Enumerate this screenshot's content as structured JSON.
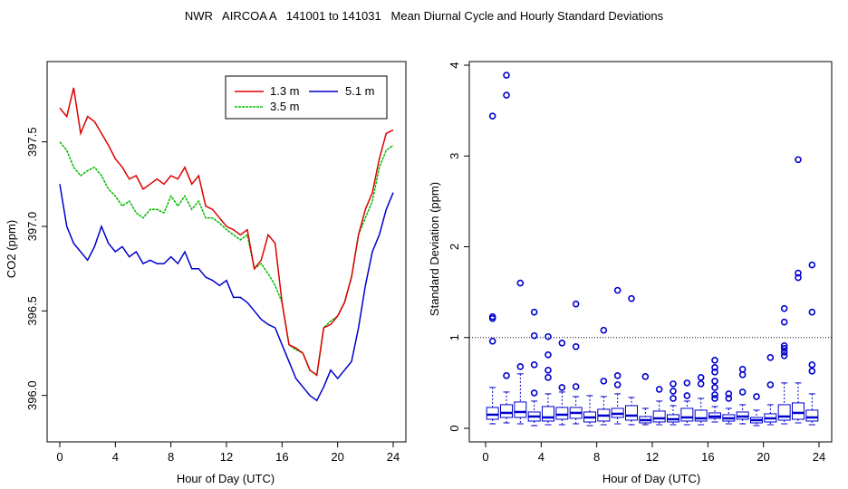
{
  "page_title": "NWR   AIRCOA A   141001 to 141031   Mean Diurnal Cycle and Hourly Standard Deviations",
  "colors": {
    "red": "#dd0000",
    "green": "#00bb00",
    "blue": "#0000cc",
    "axis": "#000000"
  },
  "chart_data": [
    {
      "type": "line",
      "title": "",
      "xlabel": "Hour of Day (UTC)",
      "ylabel": "CO2 (ppm)",
      "xlim": [
        0,
        24
      ],
      "ylim": [
        395.8,
        397.9
      ],
      "xticks": [
        0,
        4,
        8,
        12,
        16,
        20,
        24
      ],
      "xtick_labels": [
        "0",
        "4",
        "8",
        "12",
        "16",
        "20",
        "24"
      ],
      "yticks": [
        396.0,
        396.5,
        397.0,
        397.5
      ],
      "ytick_labels": [
        "396.0",
        "396.5",
        "397.0",
        "397.5"
      ],
      "legend_position": "top-right",
      "legend": [
        {
          "label": "1.3 m",
          "color": "#dd0000"
        },
        {
          "label": "5.1 m",
          "color": "#0000cc"
        },
        {
          "label": "3.5 m",
          "color": "#00bb00"
        }
      ],
      "x": [
        0,
        0.5,
        1,
        1.5,
        2,
        2.5,
        3,
        3.5,
        4,
        4.5,
        5,
        5.5,
        6,
        6.5,
        7,
        7.5,
        8,
        8.5,
        9,
        9.5,
        10,
        10.5,
        11,
        11.5,
        12,
        12.5,
        13,
        13.5,
        14,
        14.5,
        15,
        15.5,
        16,
        16.5,
        17,
        17.5,
        18,
        18.5,
        19,
        19.5,
        20,
        20.5,
        21,
        21.5,
        22,
        22.5,
        23,
        23.5,
        24
      ],
      "series": [
        {
          "name": "1.3 m",
          "color": "#dd0000",
          "values": [
            397.7,
            397.65,
            397.82,
            397.55,
            397.65,
            397.62,
            397.55,
            397.48,
            397.4,
            397.35,
            397.28,
            397.3,
            397.22,
            397.25,
            397.28,
            397.25,
            397.3,
            397.28,
            397.35,
            397.25,
            397.3,
            397.12,
            397.1,
            397.05,
            397.0,
            396.98,
            396.95,
            396.98,
            396.75,
            396.8,
            396.95,
            396.9,
            396.55,
            396.3,
            396.28,
            396.25,
            396.15,
            396.12,
            396.4,
            396.42,
            396.47,
            396.55,
            396.7,
            396.95,
            397.1,
            397.2,
            397.4,
            397.55,
            397.57
          ]
        },
        {
          "name": "3.5 m",
          "color": "#00bb00",
          "values": [
            397.5,
            397.45,
            397.35,
            397.3,
            397.33,
            397.35,
            397.3,
            397.22,
            397.18,
            397.12,
            397.15,
            397.08,
            397.05,
            397.1,
            397.1,
            397.08,
            397.18,
            397.12,
            397.18,
            397.1,
            397.15,
            397.05,
            397.05,
            397.02,
            396.98,
            396.95,
            396.92,
            396.95,
            396.75,
            396.78,
            396.72,
            396.65,
            396.55,
            396.3,
            396.27,
            396.25,
            396.15,
            396.12,
            396.4,
            396.44,
            396.47,
            396.55,
            396.7,
            396.95,
            397.05,
            397.15,
            397.35,
            397.45,
            397.48
          ]
        },
        {
          "name": "5.1 m",
          "color": "#0000cc",
          "values": [
            397.25,
            397.0,
            396.9,
            396.85,
            396.8,
            396.88,
            397.0,
            396.9,
            396.85,
            396.88,
            396.82,
            396.85,
            396.78,
            396.8,
            396.78,
            396.78,
            396.82,
            396.78,
            396.85,
            396.75,
            396.75,
            396.7,
            396.68,
            396.65,
            396.68,
            396.58,
            396.58,
            396.55,
            396.5,
            396.45,
            396.42,
            396.4,
            396.3,
            396.2,
            396.1,
            396.05,
            396.0,
            395.97,
            396.05,
            396.15,
            396.1,
            396.15,
            396.2,
            396.4,
            396.65,
            396.85,
            396.95,
            397.1,
            397.2
          ]
        }
      ]
    },
    {
      "type": "box",
      "title": "",
      "xlabel": "Hour of Day (UTC)",
      "ylabel": "Standard Deviation (ppm)",
      "xlim": [
        0,
        24.5
      ],
      "ylim": [
        0,
        4
      ],
      "xticks": [
        0,
        4,
        8,
        12,
        16,
        20,
        24
      ],
      "xtick_labels": [
        "0",
        "4",
        "8",
        "12",
        "16",
        "20",
        "24"
      ],
      "yticks": [
        0,
        1,
        2,
        3,
        4
      ],
      "ytick_labels": [
        "0",
        "1",
        "2",
        "3",
        "4"
      ],
      "reference_line": 1,
      "boxes": [
        {
          "hour": 0.5,
          "lw": 0.05,
          "q1": 0.1,
          "med": 0.15,
          "q3": 0.23,
          "uw": 0.45,
          "outliers": [
            0.96,
            1.21,
            1.23,
            3.44
          ]
        },
        {
          "hour": 1.5,
          "lw": 0.06,
          "q1": 0.12,
          "med": 0.17,
          "q3": 0.26,
          "uw": 0.4,
          "outliers": [
            0.58,
            3.67,
            3.89
          ]
        },
        {
          "hour": 2.5,
          "lw": 0.05,
          "q1": 0.12,
          "med": 0.18,
          "q3": 0.29,
          "uw": 0.6,
          "outliers": [
            0.68,
            1.6
          ]
        },
        {
          "hour": 3.5,
          "lw": 0.03,
          "q1": 0.08,
          "med": 0.13,
          "q3": 0.18,
          "uw": 0.3,
          "outliers": [
            0.39,
            0.7,
            1.02,
            1.28
          ]
        },
        {
          "hour": 4.5,
          "lw": 0.04,
          "q1": 0.08,
          "med": 0.12,
          "q3": 0.24,
          "uw": 0.38,
          "outliers": [
            0.56,
            0.64,
            0.81,
            1.01
          ]
        },
        {
          "hour": 5.5,
          "lw": 0.04,
          "q1": 0.1,
          "med": 0.15,
          "q3": 0.23,
          "uw": 0.4,
          "outliers": [
            0.45,
            0.94
          ]
        },
        {
          "hour": 6.5,
          "lw": 0.05,
          "q1": 0.11,
          "med": 0.17,
          "q3": 0.23,
          "uw": 0.35,
          "outliers": [
            0.46,
            0.9,
            1.37
          ]
        },
        {
          "hour": 7.5,
          "lw": 0.03,
          "q1": 0.07,
          "med": 0.12,
          "q3": 0.18,
          "uw": 0.36,
          "outliers": []
        },
        {
          "hour": 8.5,
          "lw": 0.04,
          "q1": 0.08,
          "med": 0.14,
          "q3": 0.21,
          "uw": 0.35,
          "outliers": [
            0.52,
            1.08
          ]
        },
        {
          "hour": 9.5,
          "lw": 0.05,
          "q1": 0.12,
          "med": 0.16,
          "q3": 0.22,
          "uw": 0.38,
          "outliers": [
            0.48,
            0.58,
            1.52
          ]
        },
        {
          "hour": 10.5,
          "lw": 0.04,
          "q1": 0.09,
          "med": 0.14,
          "q3": 0.25,
          "uw": 0.34,
          "outliers": [
            1.43
          ]
        },
        {
          "hour": 11.5,
          "lw": 0.04,
          "q1": 0.06,
          "med": 0.09,
          "q3": 0.13,
          "uw": 0.22,
          "outliers": [
            0.57
          ]
        },
        {
          "hour": 12.5,
          "lw": 0.04,
          "q1": 0.07,
          "med": 0.11,
          "q3": 0.19,
          "uw": 0.3,
          "outliers": [
            0.43
          ]
        },
        {
          "hour": 13.5,
          "lw": 0.04,
          "q1": 0.07,
          "med": 0.1,
          "q3": 0.15,
          "uw": 0.25,
          "outliers": [
            0.33,
            0.41,
            0.49
          ]
        },
        {
          "hour": 14.5,
          "lw": 0.04,
          "q1": 0.08,
          "med": 0.12,
          "q3": 0.22,
          "uw": 0.3,
          "outliers": [
            0.36,
            0.5
          ]
        },
        {
          "hour": 15.5,
          "lw": 0.04,
          "q1": 0.08,
          "med": 0.11,
          "q3": 0.2,
          "uw": 0.33,
          "outliers": [
            0.49,
            0.56
          ]
        },
        {
          "hour": 16.5,
          "lw": 0.07,
          "q1": 0.11,
          "med": 0.13,
          "q3": 0.17,
          "uw": 0.24,
          "outliers": [
            0.33,
            0.37,
            0.45,
            0.52,
            0.62,
            0.67,
            0.75
          ]
        },
        {
          "hour": 17.5,
          "lw": 0.05,
          "q1": 0.08,
          "med": 0.11,
          "q3": 0.15,
          "uw": 0.22,
          "outliers": [
            0.33,
            0.38
          ]
        },
        {
          "hour": 18.5,
          "lw": 0.05,
          "q1": 0.1,
          "med": 0.13,
          "q3": 0.18,
          "uw": 0.26,
          "outliers": [
            0.4,
            0.59,
            0.65
          ]
        },
        {
          "hour": 19.5,
          "lw": 0.03,
          "q1": 0.06,
          "med": 0.09,
          "q3": 0.12,
          "uw": 0.2,
          "outliers": [
            0.35
          ]
        },
        {
          "hour": 20.5,
          "lw": 0.04,
          "q1": 0.07,
          "med": 0.11,
          "q3": 0.16,
          "uw": 0.26,
          "outliers": [
            0.48,
            0.78
          ]
        },
        {
          "hour": 21.5,
          "lw": 0.05,
          "q1": 0.09,
          "med": 0.13,
          "q3": 0.26,
          "uw": 0.5,
          "outliers": [
            0.8,
            0.84,
            0.88,
            0.91,
            1.17,
            1.32
          ]
        },
        {
          "hour": 22.5,
          "lw": 0.06,
          "q1": 0.1,
          "med": 0.17,
          "q3": 0.28,
          "uw": 0.5,
          "outliers": [
            1.66,
            1.71,
            2.96
          ]
        },
        {
          "hour": 23.5,
          "lw": 0.04,
          "q1": 0.08,
          "med": 0.12,
          "q3": 0.2,
          "uw": 0.38,
          "outliers": [
            0.63,
            0.7,
            1.28,
            1.8
          ]
        }
      ]
    }
  ]
}
